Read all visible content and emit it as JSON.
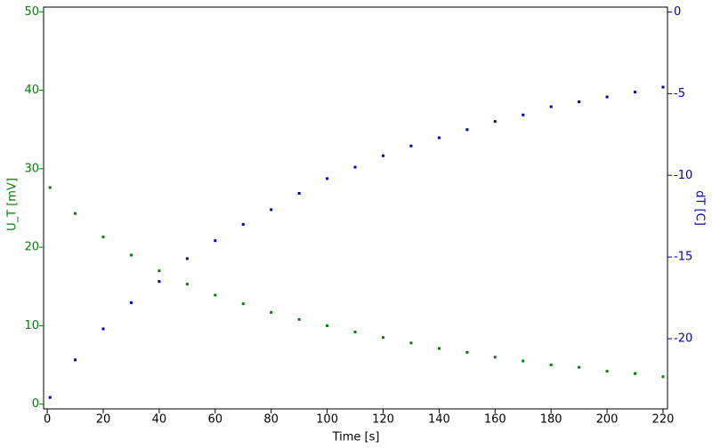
{
  "chart_data": {
    "type": "scatter",
    "x_label": "Time [s]",
    "y_label": "U_T [mV]",
    "y2_label": "dT [C]",
    "x": [
      1,
      10,
      20,
      30,
      40,
      50,
      60,
      70,
      80,
      90,
      100,
      110,
      120,
      130,
      140,
      150,
      160,
      170,
      180,
      190,
      200,
      210,
      220
    ],
    "series": [
      {
        "name": "U_T",
        "color": "#008000",
        "values": [
          27.6,
          24.3,
          21.3,
          19.0,
          17.0,
          15.3,
          13.9,
          12.8,
          11.7,
          10.8,
          10.0,
          9.2,
          8.5,
          7.8,
          7.1,
          6.6,
          6.0,
          5.5,
          5.0,
          4.7,
          4.2,
          3.9,
          3.5
        ]
      },
      {
        "name": "dT",
        "color": "#0000b4",
        "axis": "y2",
        "values": [
          -23.6,
          -21.3,
          -19.4,
          -17.8,
          -16.5,
          -15.1,
          -14.0,
          -13.0,
          -12.1,
          -11.1,
          -10.2,
          -9.5,
          -8.8,
          -8.2,
          -7.7,
          -7.2,
          -6.7,
          -6.3,
          -5.8,
          -5.5,
          -5.2,
          -4.9,
          -4.6
        ]
      }
    ],
    "xlim": [
      -1.3,
      221.6
    ],
    "xticks": [
      0,
      20,
      40,
      60,
      80,
      100,
      120,
      140,
      160,
      180,
      200,
      220
    ],
    "ylim": [
      -0.6,
      50.6
    ],
    "yticks": [
      0,
      10,
      20,
      30,
      40,
      50
    ],
    "y2lim": [
      -24.3,
      0.3
    ],
    "y2ticks": [
      -20,
      -15,
      -10,
      -5,
      0
    ]
  }
}
